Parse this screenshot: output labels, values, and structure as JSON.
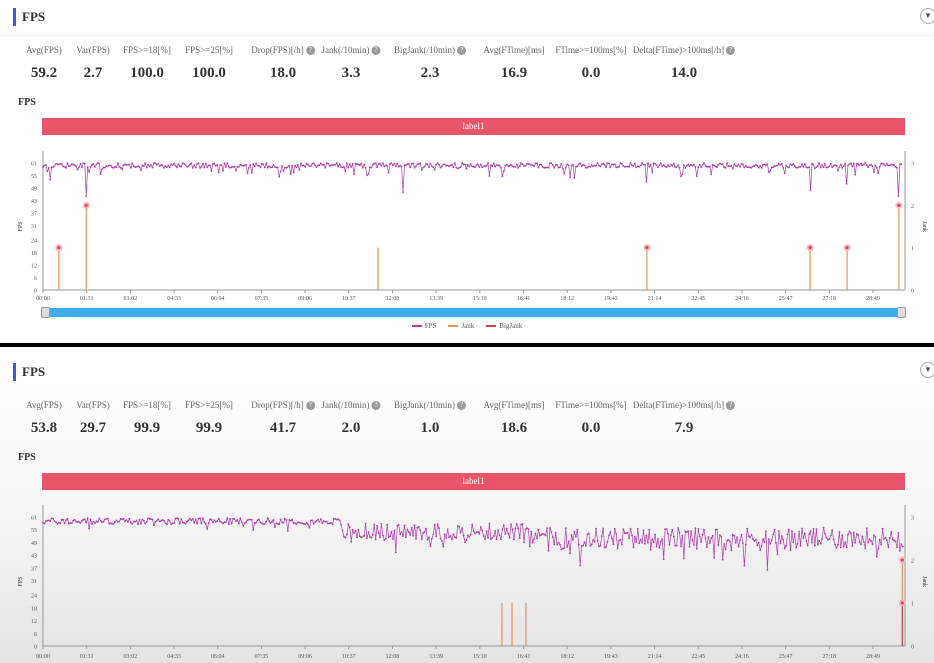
{
  "colors": {
    "fps": "#b03cae",
    "jank": "#f0914a",
    "bigjank": "#d9424f",
    "label_bar": "#e8546a",
    "slider": "#3daee9"
  },
  "panels": [
    {
      "title": "FPS",
      "chart_title": "FPS",
      "label": "label1",
      "stats": [
        {
          "label": "Avg(FPS)",
          "value": "59.2"
        },
        {
          "label": "Var(FPS)",
          "value": "2.7"
        },
        {
          "label": "FPS>=18[%]",
          "value": "100.0"
        },
        {
          "label": "FPS>=25[%]",
          "value": "100.0"
        },
        {
          "label": "Drop(FPS)[/h]",
          "value": "18.0",
          "help": true
        },
        {
          "label": "Jank(/10min)",
          "value": "3.3",
          "help": true
        },
        {
          "label": "BigJank(/10min)",
          "value": "2.3",
          "help": true
        },
        {
          "label": "Avg(FTime)[ms]",
          "value": "16.9"
        },
        {
          "label": "FTime>=100ms[%]",
          "value": "0.0"
        },
        {
          "label": "Delta(FTime)>100ms[/h]",
          "value": "14.0",
          "help": true
        }
      ],
      "legend": [
        "FPS",
        "Jank",
        "BigJank"
      ]
    },
    {
      "title": "FPS",
      "chart_title": "FPS",
      "label": "label1",
      "stats": [
        {
          "label": "Avg(FPS)",
          "value": "53.8"
        },
        {
          "label": "Var(FPS)",
          "value": "29.7"
        },
        {
          "label": "FPS>=18[%]",
          "value": "99.9"
        },
        {
          "label": "FPS>=25[%]",
          "value": "99.9"
        },
        {
          "label": "Drop(FPS)[/h]",
          "value": "41.7",
          "help": true
        },
        {
          "label": "Jank(/10min)",
          "value": "2.0",
          "help": true
        },
        {
          "label": "BigJank(/10min)",
          "value": "1.0",
          "help": true
        },
        {
          "label": "Avg(FTime)[ms]",
          "value": "18.6"
        },
        {
          "label": "FTime>=100ms[%]",
          "value": "0.0"
        },
        {
          "label": "Delta(FTime)>100ms[/h]",
          "value": "7.9",
          "help": true
        }
      ]
    }
  ],
  "chart_data": [
    {
      "type": "line",
      "ylabel": "FPS",
      "y2label": "Jank",
      "yticks": [
        "0",
        "6",
        "12",
        "18",
        "24",
        "31",
        "37",
        "43",
        "49",
        "55",
        "61"
      ],
      "y2ticks": [
        "0",
        "1",
        "2",
        "3"
      ],
      "ylim": [
        0,
        61
      ],
      "y2lim": [
        0,
        3
      ],
      "xticks": [
        "00:00",
        "01:31",
        "03:02",
        "04:33",
        "06:04",
        "07:35",
        "09:06",
        "10:37",
        "12:08",
        "13:39",
        "15:10",
        "16:41",
        "18:12",
        "19:43",
        "21:14",
        "22:45",
        "24:16",
        "25:47",
        "27:18",
        "28:49"
      ],
      "duration_s": 1790,
      "fps_profile": [
        {
          "t0": 0,
          "t1": 1790,
          "mean": 59.8,
          "spread": 1.2,
          "dip_rate": 0.12,
          "dip_depth": 5
        }
      ],
      "fps_dips": [
        {
          "t": 15,
          "fps": 53
        },
        {
          "t": 90,
          "fps": 45
        },
        {
          "t": 750,
          "fps": 47
        },
        {
          "t": 1258,
          "fps": 52
        },
        {
          "t": 1598,
          "fps": 48
        },
        {
          "t": 1675,
          "fps": 51
        },
        {
          "t": 1783,
          "fps": 45
        }
      ],
      "jank": [
        {
          "t": 33,
          "v": 1,
          "marker": true
        },
        {
          "t": 90,
          "v": 2,
          "marker": true
        },
        {
          "t": 698,
          "v": 1,
          "marker": false
        },
        {
          "t": 1258,
          "v": 1,
          "marker": true
        },
        {
          "t": 1598,
          "v": 1,
          "marker": true
        },
        {
          "t": 1675,
          "v": 1,
          "marker": true
        },
        {
          "t": 1783,
          "v": 2,
          "marker": true
        }
      ],
      "bigjank": []
    },
    {
      "type": "line",
      "ylabel": "FPS",
      "y2label": "Jank",
      "yticks": [
        "0",
        "6",
        "12",
        "18",
        "24",
        "31",
        "37",
        "43",
        "49",
        "55",
        "61"
      ],
      "y2ticks": [
        "0",
        "1",
        "2",
        "3"
      ],
      "ylim": [
        0,
        61
      ],
      "y2lim": [
        0,
        3
      ],
      "xticks": [
        "00:00",
        "01:31",
        "03:02",
        "04:33",
        "06:04",
        "07:35",
        "09:06",
        "10:37",
        "12:08",
        "13:39",
        "15:10",
        "16:41",
        "18:12",
        "19:43",
        "21:14",
        "22:45",
        "24:16",
        "25:47",
        "27:18",
        "28:49"
      ],
      "duration_s": 1792,
      "fps_profile": [
        {
          "t0": 0,
          "t1": 620,
          "mean": 59,
          "spread": 1.5,
          "dip_rate": 0.05,
          "dip_depth": 4
        },
        {
          "t0": 620,
          "t1": 1000,
          "mean": 54,
          "spread": 4,
          "dip_rate": 0.1,
          "dip_depth": 6
        },
        {
          "t0": 1000,
          "t1": 1792,
          "mean": 51,
          "spread": 5,
          "dip_rate": 0.1,
          "dip_depth": 8
        }
      ],
      "fps_dips": [
        {
          "t": 1510,
          "fps": 36
        },
        {
          "t": 1462,
          "fps": 38
        },
        {
          "t": 1118,
          "fps": 38
        },
        {
          "t": 1785,
          "fps": 45
        }
      ],
      "jank": [
        {
          "t": 956,
          "v": 1,
          "marker": false
        },
        {
          "t": 977,
          "v": 1,
          "marker": false
        },
        {
          "t": 1006,
          "v": 1,
          "marker": false
        },
        {
          "t": 1790,
          "v": 2,
          "marker": true
        }
      ],
      "bigjank": [
        {
          "t": 1790,
          "v": 1,
          "marker": true
        }
      ]
    }
  ]
}
